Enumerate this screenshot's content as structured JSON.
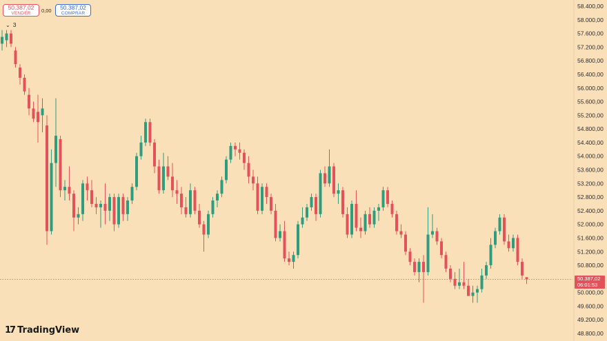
{
  "trade_panel": {
    "sell_price": "50.387,02",
    "sell_label": "VENDER",
    "spread": "0,00",
    "buy_price": "50.387,02",
    "buy_label": "COMPRAR"
  },
  "indicators_toggle": {
    "count": "3"
  },
  "logo_text": "TradingView",
  "last_price": {
    "price": "50.387,02",
    "countdown": "06:01:53"
  },
  "colors": {
    "background": "#fae0b9",
    "up": "#2f9c7d",
    "down": "#e2525a",
    "text": "#2b2b2b"
  },
  "chart_data": {
    "type": "candlestick",
    "y_axis": {
      "min": 48800,
      "max": 58400,
      "step": 400,
      "position": "right",
      "tick_labels": [
        "58.400,00",
        "58.000,00",
        "57.600,00",
        "57.200,00",
        "56.800,00",
        "56.400,00",
        "56.000,00",
        "55.600,00",
        "55.200,00",
        "54.800,00",
        "54.400,00",
        "54.000,00",
        "53.600,00",
        "53.200,00",
        "52.800,00",
        "52.400,00",
        "52.000,00",
        "51.600,00",
        "51.200,00",
        "50.800,00",
        "50.400,00",
        "50.000,00",
        "49.600,00",
        "49.200,00",
        "48.800,00"
      ]
    },
    "last_price": 50387.02,
    "grid": false,
    "candles": [
      {
        "o": 57300,
        "h": 57700,
        "l": 57100,
        "c": 57500
      },
      {
        "o": 57400,
        "h": 57700,
        "l": 57200,
        "c": 57600
      },
      {
        "o": 57600,
        "h": 57700,
        "l": 57200,
        "c": 57300
      },
      {
        "o": 57100,
        "h": 57200,
        "l": 56600,
        "c": 56700
      },
      {
        "o": 56600,
        "h": 56700,
        "l": 56100,
        "c": 56300
      },
      {
        "o": 56300,
        "h": 56400,
        "l": 55800,
        "c": 55900
      },
      {
        "o": 55800,
        "h": 56000,
        "l": 55200,
        "c": 55400
      },
      {
        "o": 55400,
        "h": 55600,
        "l": 55000,
        "c": 55100
      },
      {
        "o": 55300,
        "h": 55800,
        "l": 54400,
        "c": 55000
      },
      {
        "o": 55200,
        "h": 55700,
        "l": 54700,
        "c": 55400
      },
      {
        "o": 54900,
        "h": 55200,
        "l": 51400,
        "c": 51800
      },
      {
        "o": 51800,
        "h": 54200,
        "l": 51700,
        "c": 53800
      },
      {
        "o": 53800,
        "h": 55700,
        "l": 53100,
        "c": 54600
      },
      {
        "o": 54500,
        "h": 54600,
        "l": 52800,
        "c": 53000
      },
      {
        "o": 53000,
        "h": 53300,
        "l": 52700,
        "c": 53100
      },
      {
        "o": 53100,
        "h": 53700,
        "l": 52700,
        "c": 52900
      },
      {
        "o": 52900,
        "h": 53000,
        "l": 51800,
        "c": 52200
      },
      {
        "o": 52200,
        "h": 52500,
        "l": 52000,
        "c": 52300
      },
      {
        "o": 52300,
        "h": 53300,
        "l": 52100,
        "c": 53200
      },
      {
        "o": 53200,
        "h": 53400,
        "l": 52700,
        "c": 53000
      },
      {
        "o": 53000,
        "h": 53300,
        "l": 52500,
        "c": 52600
      },
      {
        "o": 52600,
        "h": 52800,
        "l": 52300,
        "c": 52500
      },
      {
        "o": 52500,
        "h": 52700,
        "l": 51900,
        "c": 52600
      },
      {
        "o": 52600,
        "h": 53200,
        "l": 52000,
        "c": 52400
      },
      {
        "o": 52400,
        "h": 52900,
        "l": 52100,
        "c": 52800
      },
      {
        "o": 52800,
        "h": 52900,
        "l": 51800,
        "c": 52000
      },
      {
        "o": 52000,
        "h": 52900,
        "l": 51900,
        "c": 52800
      },
      {
        "o": 52800,
        "h": 52900,
        "l": 52100,
        "c": 52300
      },
      {
        "o": 52300,
        "h": 52800,
        "l": 52100,
        "c": 52700
      },
      {
        "o": 52700,
        "h": 53200,
        "l": 52600,
        "c": 53100
      },
      {
        "o": 53100,
        "h": 54100,
        "l": 53000,
        "c": 54000
      },
      {
        "o": 54000,
        "h": 54600,
        "l": 53900,
        "c": 54400
      },
      {
        "o": 54400,
        "h": 55100,
        "l": 54300,
        "c": 55000
      },
      {
        "o": 55000,
        "h": 55100,
        "l": 54300,
        "c": 54400
      },
      {
        "o": 54400,
        "h": 54500,
        "l": 53500,
        "c": 53700
      },
      {
        "o": 53700,
        "h": 53900,
        "l": 52900,
        "c": 53000
      },
      {
        "o": 53000,
        "h": 54100,
        "l": 52900,
        "c": 53700
      },
      {
        "o": 53700,
        "h": 54000,
        "l": 53300,
        "c": 53400
      },
      {
        "o": 53400,
        "h": 53800,
        "l": 52800,
        "c": 53000
      },
      {
        "o": 53000,
        "h": 53300,
        "l": 52600,
        "c": 52900
      },
      {
        "o": 52900,
        "h": 53100,
        "l": 52300,
        "c": 52500
      },
      {
        "o": 52500,
        "h": 52800,
        "l": 52200,
        "c": 52300
      },
      {
        "o": 52300,
        "h": 53200,
        "l": 52200,
        "c": 53000
      },
      {
        "o": 53000,
        "h": 53100,
        "l": 52300,
        "c": 52400
      },
      {
        "o": 52400,
        "h": 52600,
        "l": 51900,
        "c": 52000
      },
      {
        "o": 52000,
        "h": 52100,
        "l": 51200,
        "c": 51700
      },
      {
        "o": 51700,
        "h": 52400,
        "l": 51600,
        "c": 52300
      },
      {
        "o": 52300,
        "h": 52800,
        "l": 52200,
        "c": 52700
      },
      {
        "o": 52700,
        "h": 53000,
        "l": 52500,
        "c": 52900
      },
      {
        "o": 52900,
        "h": 53400,
        "l": 52800,
        "c": 53300
      },
      {
        "o": 53300,
        "h": 54000,
        "l": 53200,
        "c": 53900
      },
      {
        "o": 53900,
        "h": 54400,
        "l": 53800,
        "c": 54300
      },
      {
        "o": 54300,
        "h": 54400,
        "l": 54000,
        "c": 54200
      },
      {
        "o": 54200,
        "h": 54400,
        "l": 53900,
        "c": 54100
      },
      {
        "o": 54100,
        "h": 54200,
        "l": 53600,
        "c": 53800
      },
      {
        "o": 53800,
        "h": 54000,
        "l": 53200,
        "c": 53400
      },
      {
        "o": 53400,
        "h": 53600,
        "l": 53000,
        "c": 53200
      },
      {
        "o": 53200,
        "h": 53400,
        "l": 52300,
        "c": 52400
      },
      {
        "o": 52400,
        "h": 53200,
        "l": 52300,
        "c": 53100
      },
      {
        "o": 53100,
        "h": 53200,
        "l": 52600,
        "c": 52800
      },
      {
        "o": 52800,
        "h": 52900,
        "l": 52300,
        "c": 52400
      },
      {
        "o": 52400,
        "h": 52600,
        "l": 51500,
        "c": 51600
      },
      {
        "o": 51600,
        "h": 52000,
        "l": 51500,
        "c": 51800
      },
      {
        "o": 51800,
        "h": 52100,
        "l": 50900,
        "c": 51000
      },
      {
        "o": 51000,
        "h": 51200,
        "l": 50800,
        "c": 50900
      },
      {
        "o": 50900,
        "h": 51200,
        "l": 50700,
        "c": 51100
      },
      {
        "o": 51100,
        "h": 52100,
        "l": 51000,
        "c": 52000
      },
      {
        "o": 52000,
        "h": 52500,
        "l": 51900,
        "c": 52200
      },
      {
        "o": 52200,
        "h": 52600,
        "l": 52100,
        "c": 52500
      },
      {
        "o": 52500,
        "h": 52900,
        "l": 52400,
        "c": 52800
      },
      {
        "o": 52800,
        "h": 52900,
        "l": 52100,
        "c": 52300
      },
      {
        "o": 52300,
        "h": 53600,
        "l": 52200,
        "c": 53500
      },
      {
        "o": 53500,
        "h": 53700,
        "l": 53100,
        "c": 53200
      },
      {
        "o": 53200,
        "h": 54200,
        "l": 53100,
        "c": 53700
      },
      {
        "o": 53700,
        "h": 53800,
        "l": 52800,
        "c": 52900
      },
      {
        "o": 52900,
        "h": 53200,
        "l": 52600,
        "c": 53000
      },
      {
        "o": 53000,
        "h": 53100,
        "l": 52200,
        "c": 52300
      },
      {
        "o": 52300,
        "h": 52500,
        "l": 51600,
        "c": 51700
      },
      {
        "o": 51700,
        "h": 52700,
        "l": 51600,
        "c": 52600
      },
      {
        "o": 52600,
        "h": 53000,
        "l": 51800,
        "c": 51900
      },
      {
        "o": 51900,
        "h": 52200,
        "l": 51600,
        "c": 51800
      },
      {
        "o": 51800,
        "h": 52400,
        "l": 51700,
        "c": 52300
      },
      {
        "o": 52300,
        "h": 52500,
        "l": 51900,
        "c": 52000
      },
      {
        "o": 52000,
        "h": 52500,
        "l": 51900,
        "c": 52400
      },
      {
        "o": 52400,
        "h": 52600,
        "l": 52100,
        "c": 52500
      },
      {
        "o": 52500,
        "h": 53100,
        "l": 52400,
        "c": 53000
      },
      {
        "o": 53000,
        "h": 53100,
        "l": 52500,
        "c": 52600
      },
      {
        "o": 52600,
        "h": 52700,
        "l": 52200,
        "c": 52300
      },
      {
        "o": 52300,
        "h": 52400,
        "l": 51700,
        "c": 51800
      },
      {
        "o": 51800,
        "h": 52000,
        "l": 51600,
        "c": 51700
      },
      {
        "o": 51700,
        "h": 51800,
        "l": 51100,
        "c": 51200
      },
      {
        "o": 51200,
        "h": 51300,
        "l": 50800,
        "c": 50900
      },
      {
        "o": 50900,
        "h": 51000,
        "l": 50500,
        "c": 50600
      },
      {
        "o": 50600,
        "h": 51000,
        "l": 50300,
        "c": 50900
      },
      {
        "o": 50900,
        "h": 51100,
        "l": 49700,
        "c": 50600
      },
      {
        "o": 50600,
        "h": 52500,
        "l": 50500,
        "c": 51700
      },
      {
        "o": 51700,
        "h": 52300,
        "l": 51600,
        "c": 51800
      },
      {
        "o": 51800,
        "h": 51900,
        "l": 51400,
        "c": 51500
      },
      {
        "o": 51500,
        "h": 51600,
        "l": 51000,
        "c": 51100
      },
      {
        "o": 51100,
        "h": 51200,
        "l": 50600,
        "c": 50700
      },
      {
        "o": 50700,
        "h": 50800,
        "l": 50300,
        "c": 50400
      },
      {
        "o": 50400,
        "h": 50600,
        "l": 50100,
        "c": 50200
      },
      {
        "o": 50200,
        "h": 50700,
        "l": 50100,
        "c": 50300
      },
      {
        "o": 50300,
        "h": 50900,
        "l": 50100,
        "c": 50200
      },
      {
        "o": 50200,
        "h": 50400,
        "l": 49900,
        "c": 49900
      },
      {
        "o": 49900,
        "h": 50200,
        "l": 49700,
        "c": 50000
      },
      {
        "o": 50000,
        "h": 50200,
        "l": 49700,
        "c": 50100
      },
      {
        "o": 50100,
        "h": 50700,
        "l": 50000,
        "c": 50500
      },
      {
        "o": 50500,
        "h": 50900,
        "l": 50400,
        "c": 50800
      },
      {
        "o": 50800,
        "h": 51600,
        "l": 50700,
        "c": 51400
      },
      {
        "o": 51400,
        "h": 51900,
        "l": 51300,
        "c": 51800
      },
      {
        "o": 51800,
        "h": 52300,
        "l": 51700,
        "c": 52200
      },
      {
        "o": 52200,
        "h": 52300,
        "l": 51400,
        "c": 51500
      },
      {
        "o": 51500,
        "h": 51700,
        "l": 51200,
        "c": 51300
      },
      {
        "o": 51300,
        "h": 51700,
        "l": 51200,
        "c": 51600
      },
      {
        "o": 51600,
        "h": 51700,
        "l": 50800,
        "c": 50900
      },
      {
        "o": 50900,
        "h": 51000,
        "l": 50400,
        "c": 50500
      },
      {
        "o": 50450,
        "h": 50450,
        "l": 50250,
        "c": 50387
      }
    ]
  }
}
